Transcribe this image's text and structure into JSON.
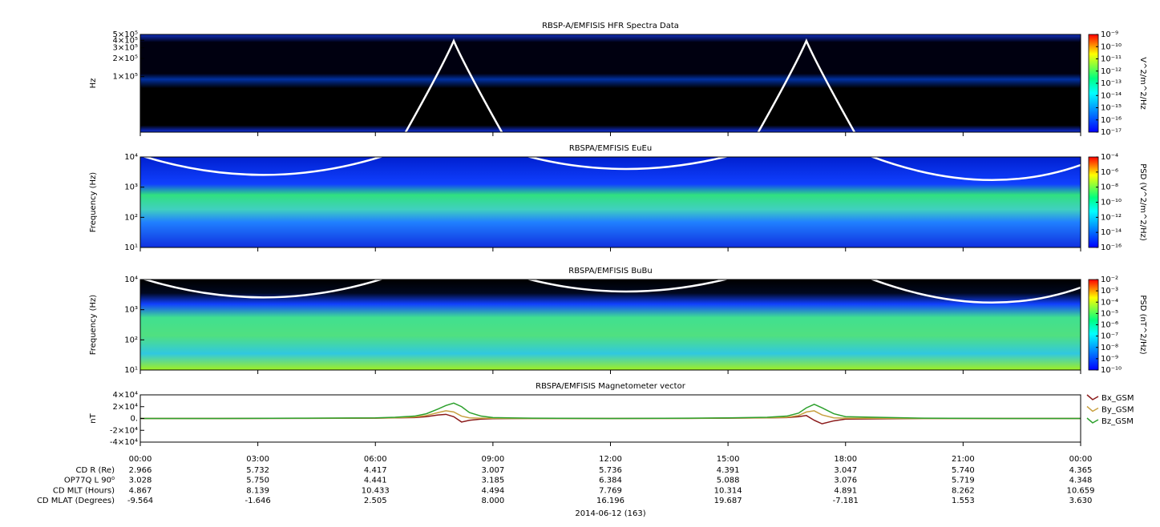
{
  "chart_data": [
    {
      "type": "spectrogram",
      "title": "RBSP-A/EMFISIS  HFR Spectra Data",
      "ylabel": "Hz",
      "ylog": true,
      "ylim": [
        12000,
        500000
      ],
      "yticks": [
        {
          "value": 500000,
          "label": "5×10⁵"
        },
        {
          "value": 400000,
          "label": "4×10⁵"
        },
        {
          "value": 300000,
          "label": "3×10⁵"
        },
        {
          "value": 200000,
          "label": "2×10⁵"
        },
        {
          "value": 100000,
          "label": "1×10⁵"
        }
      ],
      "xlim": [
        0,
        24
      ],
      "colorbar_label": "V^2/m^2/Hz",
      "zlim": [
        1e-17,
        1e-09
      ],
      "zticks": [
        {
          "value": 1e-09,
          "label": "10⁻⁹"
        },
        {
          "value": 1e-10,
          "label": "10⁻¹⁰"
        },
        {
          "value": 1e-11,
          "label": "10⁻¹¹"
        },
        {
          "value": 1e-12,
          "label": "10⁻¹²"
        },
        {
          "value": 1e-13,
          "label": "10⁻¹³"
        },
        {
          "value": 1e-14,
          "label": "10⁻¹⁴"
        },
        {
          "value": 1e-15,
          "label": "10⁻¹⁵"
        },
        {
          "value": 1e-16,
          "label": "10⁻¹⁶"
        },
        {
          "value": 1e-17,
          "label": "10⁻¹⁷"
        }
      ]
    },
    {
      "type": "spectrogram",
      "title": "RBSPA/EMFISIS  EuEu",
      "ylabel": "Frequency (Hz)",
      "ylog": true,
      "ylim": [
        10,
        10000
      ],
      "yticks": [
        {
          "value": 10,
          "label": "10¹"
        },
        {
          "value": 100,
          "label": "10²"
        },
        {
          "value": 1000,
          "label": "10³"
        },
        {
          "value": 10000,
          "label": "10⁴"
        }
      ],
      "xlim": [
        0,
        24
      ],
      "colorbar_label": "PSD (V^2/m^2/Hz)",
      "zlim": [
        1e-16,
        0.0001
      ],
      "zticks": [
        {
          "value": 0.0001,
          "label": "10⁻⁴"
        },
        {
          "value": 1e-06,
          "label": "10⁻⁶"
        },
        {
          "value": 1e-08,
          "label": "10⁻⁸"
        },
        {
          "value": 1e-10,
          "label": "10⁻¹⁰"
        },
        {
          "value": 1e-12,
          "label": "10⁻¹²"
        },
        {
          "value": 1e-14,
          "label": "10⁻¹⁴"
        },
        {
          "value": 1e-16,
          "label": "10⁻¹⁶"
        }
      ]
    },
    {
      "type": "spectrogram",
      "title": "RBSPA/EMFISIS  BuBu",
      "ylabel": "Frequency (Hz)",
      "ylog": true,
      "ylim": [
        10,
        10000
      ],
      "yticks": [
        {
          "value": 10,
          "label": "10¹"
        },
        {
          "value": 100,
          "label": "10²"
        },
        {
          "value": 1000,
          "label": "10³"
        },
        {
          "value": 10000,
          "label": "10⁴"
        }
      ],
      "xlim": [
        0,
        24
      ],
      "colorbar_label": "PSD (nT^2/Hz)",
      "zlim": [
        1e-10,
        0.01
      ],
      "zticks": [
        {
          "value": 0.01,
          "label": "10⁻²"
        },
        {
          "value": 0.001,
          "label": "10⁻³"
        },
        {
          "value": 0.0001,
          "label": "10⁻⁴"
        },
        {
          "value": 1e-05,
          "label": "10⁻⁵"
        },
        {
          "value": 1e-06,
          "label": "10⁻⁶"
        },
        {
          "value": 1e-07,
          "label": "10⁻⁷"
        },
        {
          "value": 1e-08,
          "label": "10⁻⁸"
        },
        {
          "value": 1e-09,
          "label": "10⁻⁹"
        },
        {
          "value": 1e-10,
          "label": "10⁻¹⁰"
        }
      ]
    },
    {
      "type": "line",
      "title": "RBSPA/EMFISIS  Magnetometer vector",
      "ylabel": "nT",
      "ylim": [
        -40000,
        40000
      ],
      "yticks": [
        {
          "value": 40000,
          "label": "4×10⁴"
        },
        {
          "value": 20000,
          "label": "2×10⁴"
        },
        {
          "value": 0,
          "label": "0."
        },
        {
          "value": -20000,
          "label": "-2×10⁴"
        },
        {
          "value": -40000,
          "label": "-4×10⁴"
        }
      ],
      "xlim": [
        0,
        24
      ],
      "xticks": [
        {
          "value": 0,
          "label": "00:00"
        },
        {
          "value": 3,
          "label": "03:00"
        },
        {
          "value": 6,
          "label": "06:00"
        },
        {
          "value": 9,
          "label": "09:00"
        },
        {
          "value": 12,
          "label": "12:00"
        },
        {
          "value": 15,
          "label": "15:00"
        },
        {
          "value": 18,
          "label": "18:00"
        },
        {
          "value": 21,
          "label": "21:00"
        },
        {
          "value": 24,
          "label": "00:00"
        }
      ],
      "legend": "right",
      "x": [
        0,
        2,
        4,
        6,
        6.5,
        7,
        7.3,
        7.6,
        7.8,
        8,
        8.2,
        8.4,
        8.7,
        9,
        10,
        12,
        14,
        15,
        16,
        16.5,
        16.8,
        17,
        17.2,
        17.4,
        17.7,
        18,
        20,
        22,
        24
      ],
      "series": [
        {
          "name": "Bx_GSM",
          "color": "#8b1a1a",
          "values": [
            0,
            0,
            200,
            500,
            1000,
            1500,
            3000,
            6000,
            7000,
            3000,
            -6000,
            -3000,
            -1000,
            -300,
            0,
            0,
            200,
            500,
            1000,
            1500,
            3000,
            5000,
            -3000,
            -9000,
            -4000,
            -1000,
            0,
            0,
            0
          ]
        },
        {
          "name": "By_GSM",
          "color": "#c8a040",
          "values": [
            0,
            0,
            300,
            600,
            1200,
            2500,
            5000,
            10000,
            13000,
            11000,
            4000,
            1000,
            500,
            300,
            0,
            0,
            200,
            600,
            1200,
            2000,
            5000,
            11000,
            13000,
            6000,
            1000,
            500,
            0,
            0,
            0
          ]
        },
        {
          "name": "Bz_GSM",
          "color": "#2ca02c",
          "values": [
            0,
            0,
            500,
            1000,
            2000,
            4000,
            8000,
            16000,
            22000,
            26000,
            20000,
            10000,
            4000,
            1500,
            500,
            0,
            500,
            1000,
            2000,
            4000,
            9000,
            18000,
            24000,
            18000,
            8000,
            3000,
            500,
            0,
            0
          ]
        }
      ]
    }
  ],
  "ephemeris": {
    "rows": [
      {
        "label": "CD R (Re)",
        "values": [
          "2.966",
          "5.732",
          "4.417",
          "3.007",
          "5.736",
          "4.391",
          "3.047",
          "5.740",
          "4.365"
        ]
      },
      {
        "label": "OP77Q L 90⁰",
        "values": [
          "3.028",
          "5.750",
          "4.441",
          "3.185",
          "6.384",
          "5.088",
          "3.076",
          "5.719",
          "4.348"
        ]
      },
      {
        "label": "CD MLT (Hours)",
        "values": [
          "4.867",
          "8.139",
          "10.433",
          "4.494",
          "7.769",
          "10.314",
          "4.891",
          "8.262",
          "10.659"
        ]
      },
      {
        "label": "CD MLAT (Degrees)",
        "values": [
          "-9.564",
          "-1.646",
          "2.505",
          "8.000",
          "16.196",
          "19.687",
          "-7.181",
          "1.553",
          "3.630"
        ]
      }
    ],
    "date": "2014-06-12 (163)"
  }
}
